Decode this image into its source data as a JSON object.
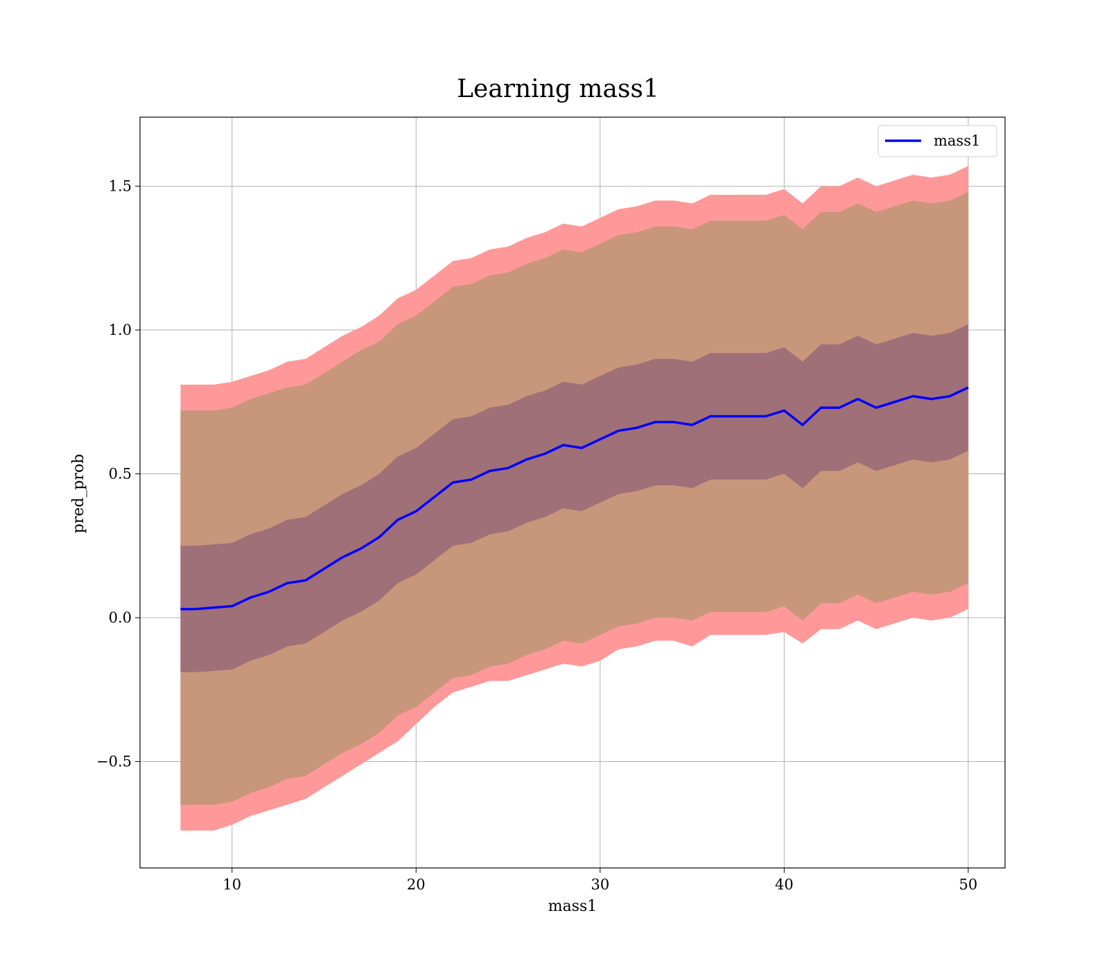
{
  "chart_data": {
    "type": "line",
    "title": "Learning mass1",
    "xlabel": "mass1",
    "ylabel": "pred_prob",
    "xlim": [
      5,
      52
    ],
    "ylim": [
      -0.87,
      1.74
    ],
    "x_ticks": [
      10,
      20,
      30,
      40,
      50
    ],
    "y_ticks": [
      -0.5,
      0.0,
      0.5,
      1.0,
      1.5
    ],
    "x_tick_labels": [
      "10",
      "20",
      "30",
      "40",
      "50"
    ],
    "y_tick_labels": [
      "−0.5",
      "0.0",
      "0.5",
      "1.0",
      "1.5"
    ],
    "grid": true,
    "legend": {
      "placement": "top-right",
      "entries": [
        "mass1"
      ]
    },
    "colors": {
      "line": "#0000ff",
      "band_outer": "#ff9999",
      "band_middle": "#c8967a",
      "band_inner": "#a07078",
      "grid": "#b0b0b0"
    },
    "x": [
      7.2,
      8,
      9,
      10,
      11,
      12,
      13,
      14,
      15,
      16,
      17,
      18,
      19,
      20,
      21,
      22,
      23,
      24,
      25,
      26,
      27,
      28,
      29,
      30,
      31,
      32,
      33,
      34,
      35,
      36,
      37,
      38,
      39,
      40,
      41,
      42,
      43,
      44,
      45,
      46,
      47,
      48,
      49,
      50
    ],
    "series": [
      {
        "name": "mass1",
        "values": [
          0.03,
          0.03,
          0.035,
          0.04,
          0.07,
          0.09,
          0.12,
          0.13,
          0.17,
          0.21,
          0.24,
          0.28,
          0.34,
          0.37,
          0.42,
          0.47,
          0.48,
          0.51,
          0.52,
          0.55,
          0.57,
          0.6,
          0.59,
          0.62,
          0.65,
          0.66,
          0.68,
          0.68,
          0.67,
          0.7,
          0.7,
          0.7,
          0.7,
          0.72,
          0.67,
          0.73,
          0.73,
          0.76,
          0.73,
          0.75,
          0.77,
          0.76,
          0.77,
          0.8
        ]
      }
    ],
    "bands": [
      {
        "level": "outer",
        "lower": [
          -0.74,
          -0.74,
          -0.74,
          -0.72,
          -0.69,
          -0.67,
          -0.65,
          -0.63,
          -0.59,
          -0.55,
          -0.51,
          -0.47,
          -0.43,
          -0.37,
          -0.31,
          -0.26,
          -0.24,
          -0.22,
          -0.22,
          -0.2,
          -0.18,
          -0.16,
          -0.17,
          -0.15,
          -0.11,
          -0.1,
          -0.08,
          -0.08,
          -0.1,
          -0.06,
          -0.06,
          -0.06,
          -0.06,
          -0.05,
          -0.09,
          -0.04,
          -0.04,
          -0.01,
          -0.04,
          -0.02,
          0.0,
          -0.01,
          0.0,
          0.03
        ],
        "upper": [
          0.81,
          0.81,
          0.81,
          0.82,
          0.84,
          0.86,
          0.89,
          0.9,
          0.94,
          0.98,
          1.01,
          1.05,
          1.11,
          1.14,
          1.19,
          1.24,
          1.25,
          1.28,
          1.29,
          1.32,
          1.34,
          1.37,
          1.36,
          1.39,
          1.42,
          1.43,
          1.45,
          1.45,
          1.44,
          1.47,
          1.47,
          1.47,
          1.47,
          1.49,
          1.44,
          1.5,
          1.5,
          1.53,
          1.5,
          1.52,
          1.54,
          1.53,
          1.54,
          1.57
        ]
      },
      {
        "level": "middle",
        "lower": [
          -0.65,
          -0.65,
          -0.65,
          -0.64,
          -0.61,
          -0.59,
          -0.56,
          -0.55,
          -0.51,
          -0.47,
          -0.44,
          -0.4,
          -0.34,
          -0.31,
          -0.26,
          -0.21,
          -0.2,
          -0.17,
          -0.16,
          -0.13,
          -0.11,
          -0.08,
          -0.09,
          -0.06,
          -0.03,
          -0.02,
          0.0,
          0.0,
          -0.01,
          0.02,
          0.02,
          0.02,
          0.02,
          0.04,
          -0.01,
          0.05,
          0.05,
          0.08,
          0.05,
          0.07,
          0.09,
          0.08,
          0.09,
          0.12
        ],
        "upper": [
          0.72,
          0.72,
          0.72,
          0.73,
          0.76,
          0.78,
          0.8,
          0.81,
          0.85,
          0.89,
          0.93,
          0.96,
          1.02,
          1.05,
          1.1,
          1.15,
          1.16,
          1.19,
          1.2,
          1.23,
          1.25,
          1.28,
          1.27,
          1.3,
          1.33,
          1.34,
          1.36,
          1.36,
          1.35,
          1.38,
          1.38,
          1.38,
          1.38,
          1.4,
          1.35,
          1.41,
          1.41,
          1.44,
          1.41,
          1.43,
          1.45,
          1.44,
          1.45,
          1.48
        ]
      },
      {
        "level": "inner",
        "lower": [
          -0.19,
          -0.19,
          -0.185,
          -0.18,
          -0.15,
          -0.13,
          -0.1,
          -0.09,
          -0.05,
          -0.01,
          0.02,
          0.06,
          0.12,
          0.15,
          0.2,
          0.25,
          0.26,
          0.29,
          0.3,
          0.33,
          0.35,
          0.38,
          0.37,
          0.4,
          0.43,
          0.44,
          0.46,
          0.46,
          0.45,
          0.48,
          0.48,
          0.48,
          0.48,
          0.5,
          0.45,
          0.51,
          0.51,
          0.54,
          0.51,
          0.53,
          0.55,
          0.54,
          0.55,
          0.58
        ],
        "upper": [
          0.25,
          0.25,
          0.255,
          0.26,
          0.29,
          0.31,
          0.34,
          0.35,
          0.39,
          0.43,
          0.46,
          0.5,
          0.56,
          0.59,
          0.64,
          0.69,
          0.7,
          0.73,
          0.74,
          0.77,
          0.79,
          0.82,
          0.81,
          0.84,
          0.87,
          0.88,
          0.9,
          0.9,
          0.89,
          0.92,
          0.92,
          0.92,
          0.92,
          0.94,
          0.89,
          0.95,
          0.95,
          0.98,
          0.95,
          0.97,
          0.99,
          0.98,
          0.99,
          1.02
        ]
      }
    ]
  }
}
